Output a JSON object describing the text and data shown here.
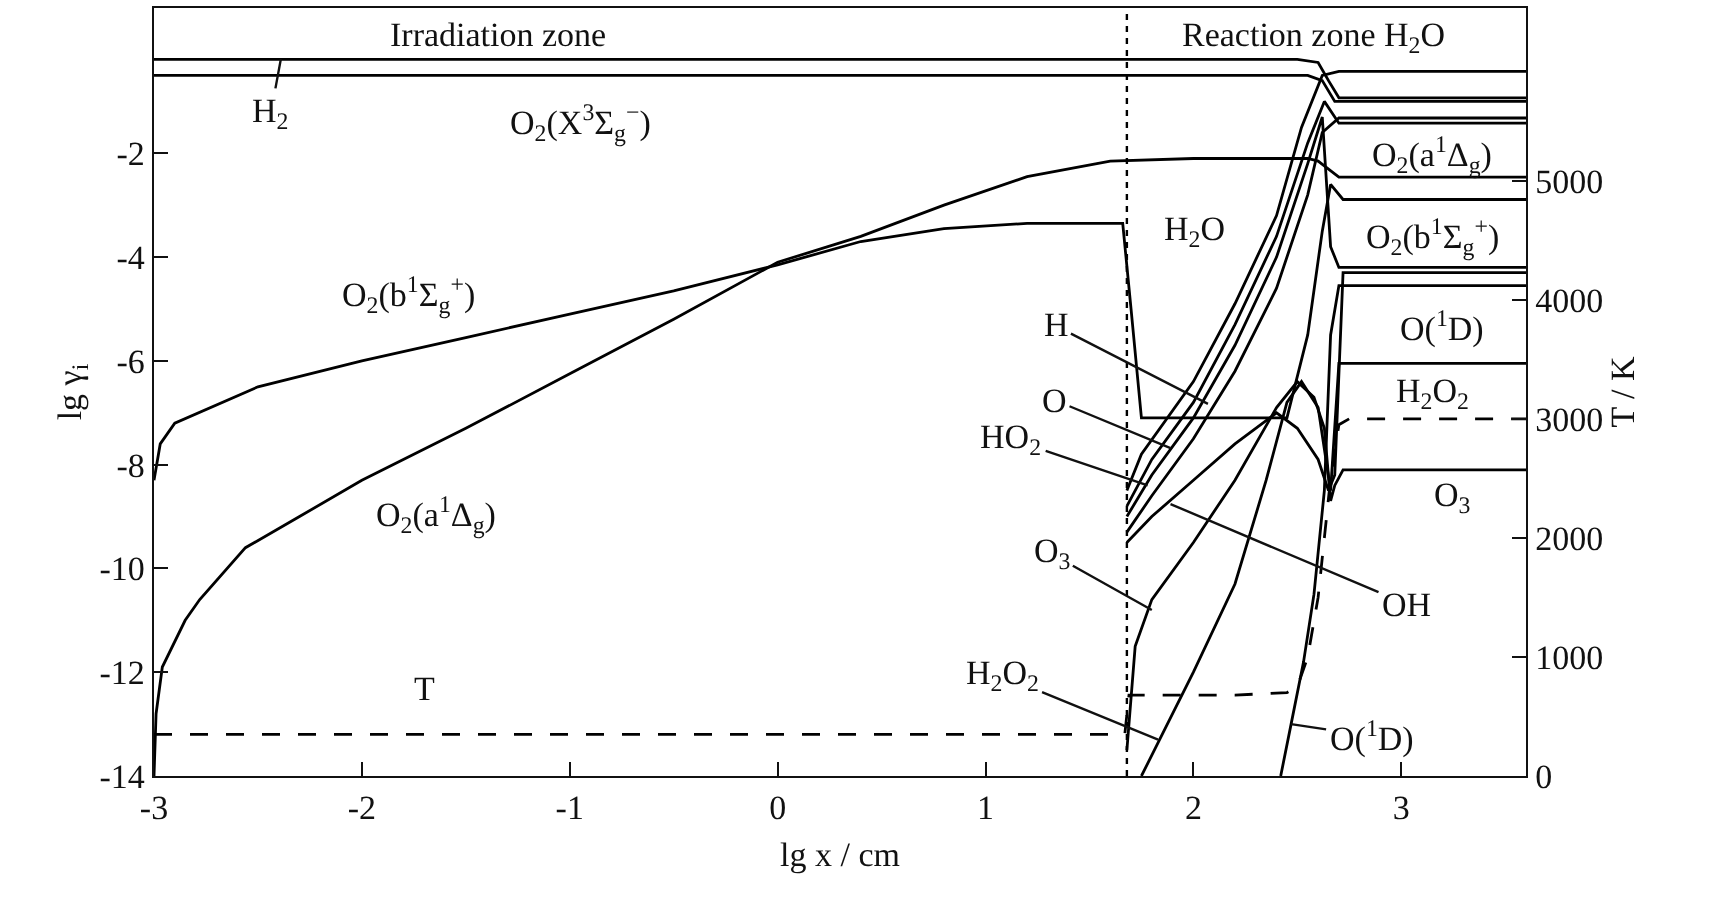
{
  "chart_data": {
    "type": "line",
    "xlabel": "lg x / cm",
    "ylabel": "lg γ$_{i}$",
    "y2label": "T / K",
    "xlim": [
      -3,
      3.6
    ],
    "xticks": [
      -3,
      -2,
      -1,
      0,
      1,
      2,
      3
    ],
    "ylim": [
      -14,
      0.8
    ],
    "yticks": [
      -14,
      -12,
      -10,
      -8,
      -6,
      -4,
      -2
    ],
    "y2lim": [
      0,
      6450
    ],
    "y2ticks": [
      0,
      1000,
      2000,
      3000,
      4000,
      5000
    ],
    "marker": "none",
    "line_style": "solid",
    "ref_lines": [
      {
        "axis": "x",
        "value": 1.68,
        "color": "#000000",
        "line_style": "dotted"
      }
    ],
    "series": [
      {
        "color": "#000000",
        "x": [
          -3,
          2.5,
          2.6,
          2.65,
          2.7,
          3.6
        ],
        "values": [
          -0.19,
          -0.19,
          -0.25,
          -0.6,
          -0.93,
          -0.93
        ]
      },
      {
        "color": "#000000",
        "x": [
          -3,
          2.55,
          2.62,
          2.68,
          3.6
        ],
        "values": [
          -0.5,
          -0.5,
          -0.6,
          -1.0,
          -1.0
        ]
      },
      {
        "color": "#000000",
        "x": [
          -3,
          -2.97,
          -2.9,
          -2.5,
          -2,
          -1.5,
          -1,
          -0.5,
          0,
          0.4,
          0.8,
          1.2,
          1.66,
          1.7,
          1.75,
          2.45,
          2.55,
          2.62,
          2.66,
          2.72,
          3.6
        ],
        "values": [
          -8.3,
          -7.6,
          -7.2,
          -6.5,
          -6.0,
          -5.55,
          -5.1,
          -4.65,
          -4.15,
          -3.7,
          -3.45,
          -3.35,
          -3.35,
          -5.0,
          -7.1,
          -7.1,
          -5.5,
          -3.5,
          -2.6,
          -2.89,
          -2.89
        ]
      },
      {
        "color": "#000000",
        "x": [
          -3,
          -2.99,
          -2.96,
          -2.85,
          -2.78,
          -2.56,
          -2.3,
          -2,
          -1.5,
          -1,
          -0.5,
          0,
          0.4,
          0.8,
          1.2,
          1.6,
          2.0,
          2.55,
          2.6,
          2.7,
          3.6
        ],
        "values": [
          -14,
          -12.8,
          -11.9,
          -11,
          -10.6,
          -9.6,
          -9.0,
          -8.3,
          -7.3,
          -6.25,
          -5.2,
          -4.1,
          -3.6,
          -3.0,
          -2.45,
          -2.15,
          -2.1,
          -2.1,
          -2.15,
          -2.46,
          -2.46
        ]
      },
      {
        "color": "#000000",
        "x": [
          1.68,
          1.75,
          2.0,
          2.2,
          2.4,
          2.52,
          2.62,
          2.7,
          3.6
        ],
        "values": [
          -8.5,
          -7.8,
          -6.4,
          -4.9,
          -3.2,
          -1.5,
          -0.5,
          -0.42,
          -0.42
        ]
      },
      {
        "color": "#000000",
        "x": [
          1.68,
          1.8,
          2.0,
          2.2,
          2.4,
          2.55,
          2.63,
          2.7,
          3.6
        ],
        "values": [
          -8.8,
          -7.9,
          -6.8,
          -5.3,
          -3.6,
          -1.8,
          -1.0,
          -1.42,
          -1.42
        ]
      },
      {
        "color": "#000000",
        "x": [
          1.68,
          1.8,
          2.0,
          2.2,
          2.4,
          2.55,
          2.62,
          2.66,
          2.7,
          3.6
        ],
        "values": [
          -9.0,
          -8.2,
          -7.1,
          -5.7,
          -4.0,
          -2.2,
          -1.3,
          -3.8,
          -4.2,
          -4.2
        ]
      },
      {
        "color": "#000000",
        "x": [
          1.68,
          1.8,
          2.0,
          2.2,
          2.4,
          2.55,
          2.62,
          2.7,
          3.6
        ],
        "values": [
          -9.3,
          -8.6,
          -7.5,
          -6.2,
          -4.6,
          -2.8,
          -1.6,
          -1.32,
          -1.32
        ]
      },
      {
        "color": "#000000",
        "x": [
          1.68,
          1.8,
          2.0,
          2.2,
          2.4,
          2.5,
          2.6,
          2.65,
          2.68,
          2.72,
          3.6
        ],
        "values": [
          -9.5,
          -9.0,
          -8.3,
          -7.6,
          -7.0,
          -7.3,
          -7.9,
          -8.5,
          -8.2,
          -4.3,
          -4.3
        ]
      },
      {
        "color": "#000000",
        "x": [
          1.68,
          1.72,
          1.8,
          2.0,
          2.2,
          2.4,
          2.5,
          2.58,
          2.63,
          2.66,
          2.68,
          2.72,
          3.6
        ],
        "values": [
          -13.5,
          -11.5,
          -10.6,
          -9.5,
          -8.3,
          -6.9,
          -6.4,
          -6.7,
          -7.3,
          -8.7,
          -8.4,
          -8.1,
          -8.1
        ]
      },
      {
        "color": "#000000",
        "x": [
          1.75,
          1.85,
          2.0,
          2.2,
          2.35,
          2.45,
          2.52,
          2.6,
          2.66,
          2.7,
          3.6
        ],
        "values": [
          -14,
          -13.2,
          -12.0,
          -10.3,
          -8.3,
          -6.8,
          -6.4,
          -6.9,
          -8.5,
          -6.05,
          -6.05
        ]
      },
      {
        "color": "#000000",
        "x": [
          2.42,
          2.47,
          2.53,
          2.58,
          2.63,
          2.66,
          2.7,
          3.6
        ],
        "values": [
          -14,
          -13.0,
          -11.8,
          -10.5,
          -8.5,
          -5.5,
          -4.55,
          -4.55
        ]
      },
      {
        "color": "#000000",
        "axis": "y2",
        "line_style": "dashed",
        "x": [
          -3,
          1.67,
          1.69,
          2.2,
          2.45,
          2.5,
          2.55,
          2.6,
          2.63,
          2.66,
          2.7,
          2.75,
          3.6
        ],
        "values": [
          350,
          350,
          680,
          680,
          700,
          750,
          1000,
          1500,
          2000,
          2500,
          2950,
          3000,
          3000
        ]
      }
    ],
    "annotations": [
      "Irradiation zone",
      "Reaction zone H$_{2}$O",
      {
        "text": "H$_{2}$",
        "x": -2.39,
        "y": -0.19
      },
      {
        "text": "O$_{2}$(X$^{3}$Σ$_{g}$$^{−}$)",
        "x": -0.95,
        "y": -0.5
      },
      {
        "text": "O$_{2}$(b$^{1}$Σ$_{g}$$^{+}$)",
        "x": -1.77,
        "y": -5.75
      },
      "O$_{2}$(a$^{1}$Δ$_{g}$)",
      "T",
      {
        "text": "H$_{2}$O",
        "x": 1.7,
        "y": -3.5
      },
      {
        "text": "H",
        "x": 2.07,
        "y": -6.83
      },
      {
        "text": "O",
        "x": 1.89,
        "y": -7.68
      },
      {
        "text": "HO$_{2}$",
        "x": 1.78,
        "y": -8.4
      },
      {
        "text": "O$_{3}$",
        "x": 1.8,
        "y": -10.8
      },
      {
        "text": "H$_{2}$O$_{2}$",
        "x": 1.83,
        "y": -13.3
      },
      {
        "text": "OH",
        "x": 1.89,
        "y": -8.76
      },
      {
        "text": "O($^{1}$D)",
        "x": 2.47,
        "y": -13.0
      },
      {
        "text": "O$_{2}$(a$^{1}$Δ$_{g}$)",
        "x": 3.1,
        "y": -2.46
      },
      {
        "text": "O$_{2}$(b$^{1}$Σ$_{g}$$^{+}$)",
        "x": 3.1,
        "y": -2.89
      },
      {
        "text": "O($^{1}$D)",
        "x": 3.1,
        "y": -4.55
      },
      {
        "text": "H$_{2}$O$_{2}$",
        "x": 3.1,
        "y": -6.05
      },
      {
        "text": "O$_{3}$",
        "x": 3.15,
        "y": -8.1
      }
    ]
  }
}
